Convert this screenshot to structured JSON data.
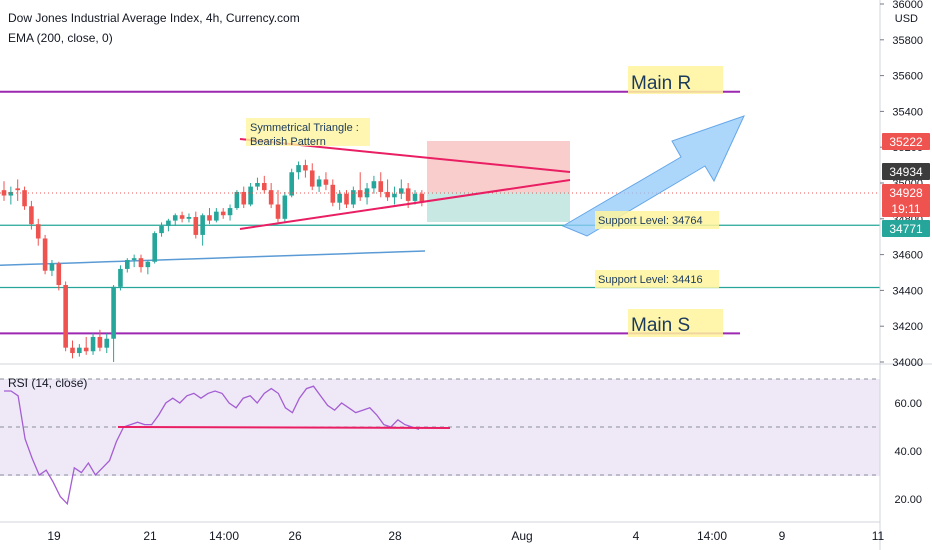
{
  "header": {
    "title": "Dow Jones Industrial Average Index, 4h, Currency.com",
    "indicator": "EMA (200, close, 0)"
  },
  "rsi_panel": {
    "label": "RSI (14, close)"
  },
  "colors": {
    "bull": "#26a69a",
    "bear": "#ef5350",
    "ema": "#5b9bd5",
    "resistance": "#9c27b0",
    "support": "#26a69a",
    "pattern": "#e91e63",
    "rsi_line": "#a45ed3",
    "highlight": "#fff59d",
    "arrow": "#90caf9"
  },
  "chart_data": [
    {
      "type": "candlestick",
      "title": "Dow Jones Industrial Average Index, 4h, Currency.com",
      "ylim": [
        34000,
        36000
      ],
      "y_ticks": [
        34000,
        34200,
        34400,
        34600,
        34800,
        35000,
        35200,
        35400,
        35600,
        35800,
        36000
      ],
      "y_unit": "USD",
      "x_tick_labels": [
        "19",
        "21",
        "14:00",
        "26",
        "28",
        "Aug",
        "4",
        "14:00",
        "9",
        "11"
      ],
      "candles": [
        {
          "o": 34960,
          "h": 35010,
          "l": 34900,
          "c": 34930
        },
        {
          "o": 34930,
          "h": 34980,
          "l": 34880,
          "c": 34950
        },
        {
          "o": 34970,
          "h": 35020,
          "l": 34900,
          "c": 34960
        },
        {
          "o": 34960,
          "h": 34980,
          "l": 34850,
          "c": 34870
        },
        {
          "o": 34870,
          "h": 34900,
          "l": 34740,
          "c": 34770
        },
        {
          "o": 34770,
          "h": 34800,
          "l": 34650,
          "c": 34690
        },
        {
          "o": 34690,
          "h": 34710,
          "l": 34490,
          "c": 34510
        },
        {
          "o": 34510,
          "h": 34570,
          "l": 34480,
          "c": 34550
        },
        {
          "o": 34550,
          "h": 34560,
          "l": 34400,
          "c": 34430
        },
        {
          "o": 34430,
          "h": 34450,
          "l": 34060,
          "c": 34080
        },
        {
          "o": 34080,
          "h": 34120,
          "l": 34020,
          "c": 34050
        },
        {
          "o": 34050,
          "h": 34100,
          "l": 34030,
          "c": 34080
        },
        {
          "o": 34080,
          "h": 34140,
          "l": 34040,
          "c": 34060
        },
        {
          "o": 34060,
          "h": 34160,
          "l": 34040,
          "c": 34140
        },
        {
          "o": 34140,
          "h": 34180,
          "l": 34060,
          "c": 34080
        },
        {
          "o": 34080,
          "h": 34160,
          "l": 34050,
          "c": 34130
        },
        {
          "o": 34130,
          "h": 34430,
          "l": 34000,
          "c": 34420
        },
        {
          "o": 34420,
          "h": 34540,
          "l": 34400,
          "c": 34520
        },
        {
          "o": 34520,
          "h": 34580,
          "l": 34500,
          "c": 34570
        },
        {
          "o": 34570,
          "h": 34600,
          "l": 34530,
          "c": 34580
        },
        {
          "o": 34580,
          "h": 34600,
          "l": 34500,
          "c": 34530
        },
        {
          "o": 34530,
          "h": 34570,
          "l": 34490,
          "c": 34560
        },
        {
          "o": 34560,
          "h": 34730,
          "l": 34550,
          "c": 34720
        },
        {
          "o": 34720,
          "h": 34780,
          "l": 34700,
          "c": 34760
        },
        {
          "o": 34760,
          "h": 34800,
          "l": 34730,
          "c": 34790
        },
        {
          "o": 34790,
          "h": 34830,
          "l": 34760,
          "c": 34820
        },
        {
          "o": 34820,
          "h": 34840,
          "l": 34780,
          "c": 34800
        },
        {
          "o": 34800,
          "h": 34830,
          "l": 34780,
          "c": 34810
        },
        {
          "o": 34810,
          "h": 34840,
          "l": 34690,
          "c": 34710
        },
        {
          "o": 34710,
          "h": 34830,
          "l": 34650,
          "c": 34820
        },
        {
          "o": 34820,
          "h": 34860,
          "l": 34770,
          "c": 34790
        },
        {
          "o": 34790,
          "h": 34860,
          "l": 34780,
          "c": 34840
        },
        {
          "o": 34840,
          "h": 34860,
          "l": 34800,
          "c": 34820
        },
        {
          "o": 34820,
          "h": 34880,
          "l": 34790,
          "c": 34860
        },
        {
          "o": 34860,
          "h": 34960,
          "l": 34850,
          "c": 34950
        },
        {
          "o": 34950,
          "h": 34980,
          "l": 34860,
          "c": 34880
        },
        {
          "o": 34880,
          "h": 35000,
          "l": 34870,
          "c": 34980
        },
        {
          "o": 34980,
          "h": 35030,
          "l": 34960,
          "c": 35000
        },
        {
          "o": 35000,
          "h": 35040,
          "l": 34940,
          "c": 34960
        },
        {
          "o": 34960,
          "h": 35000,
          "l": 34860,
          "c": 34880
        },
        {
          "o": 34880,
          "h": 34960,
          "l": 34780,
          "c": 34800
        },
        {
          "o": 34800,
          "h": 34950,
          "l": 34780,
          "c": 34930
        },
        {
          "o": 34930,
          "h": 35080,
          "l": 34920,
          "c": 35060
        },
        {
          "o": 35060,
          "h": 35120,
          "l": 35020,
          "c": 35100
        },
        {
          "o": 35100,
          "h": 35130,
          "l": 35030,
          "c": 35070
        },
        {
          "o": 35070,
          "h": 35110,
          "l": 34960,
          "c": 34980
        },
        {
          "o": 34980,
          "h": 35040,
          "l": 34950,
          "c": 35020
        },
        {
          "o": 35020,
          "h": 35060,
          "l": 34960,
          "c": 34990
        },
        {
          "o": 34990,
          "h": 35020,
          "l": 34870,
          "c": 34890
        },
        {
          "o": 34890,
          "h": 34960,
          "l": 34850,
          "c": 34940
        },
        {
          "o": 34940,
          "h": 34960,
          "l": 34860,
          "c": 34880
        },
        {
          "o": 34880,
          "h": 34980,
          "l": 34860,
          "c": 34960
        },
        {
          "o": 34960,
          "h": 35060,
          "l": 34900,
          "c": 34920
        },
        {
          "o": 34920,
          "h": 35000,
          "l": 34880,
          "c": 34970
        },
        {
          "o": 34970,
          "h": 35040,
          "l": 34940,
          "c": 35010
        },
        {
          "o": 35010,
          "h": 35060,
          "l": 34920,
          "c": 34950
        },
        {
          "o": 34950,
          "h": 35020,
          "l": 34900,
          "c": 34920
        },
        {
          "o": 34920,
          "h": 34980,
          "l": 34880,
          "c": 34940
        },
        {
          "o": 34940,
          "h": 35020,
          "l": 34910,
          "c": 34970
        },
        {
          "o": 34970,
          "h": 35000,
          "l": 34860,
          "c": 34900
        },
        {
          "o": 34900,
          "h": 34960,
          "l": 34880,
          "c": 34940
        },
        {
          "o": 34940,
          "h": 34960,
          "l": 34870,
          "c": 34890
        }
      ],
      "ema_200": [
        34540,
        34545,
        34550,
        34555,
        34560,
        34565,
        34570,
        34575,
        34580,
        34585,
        34590,
        34595,
        34600,
        34605,
        34610,
        34615,
        34620
      ],
      "horizontal_levels": [
        {
          "name": "Main R",
          "value": 35510,
          "kind": "resistance"
        },
        {
          "name": "Support Level: 34764",
          "value": 34764,
          "kind": "support"
        },
        {
          "name": "Support Level: 34416",
          "value": 34416,
          "kind": "support"
        },
        {
          "name": "Main S",
          "value": 34160,
          "kind": "resistance"
        }
      ],
      "annotations": [
        {
          "text": "Symmetrical Triangle :"
        },
        {
          "text": "Bearish Pattern"
        },
        {
          "text": "Main R"
        },
        {
          "text": "Main S"
        }
      ],
      "price_badges": [
        {
          "text": "35222",
          "value": 35222,
          "color": "#ef5350"
        },
        {
          "text": "34934",
          "value": 34934,
          "color": "#3c3c3c"
        },
        {
          "text": "34928",
          "value": 34928,
          "color": "#ef5350"
        },
        {
          "text": "19:11",
          "value": 34870,
          "color": "#ef5350"
        },
        {
          "text": "34771",
          "value": 34771,
          "color": "#26a69a"
        }
      ]
    },
    {
      "type": "line",
      "title": "RSI (14, close)",
      "ylim": [
        10,
        75
      ],
      "y_ticks": [
        20.0,
        40.0,
        60.0
      ],
      "y_tick_labels": [
        "20.00",
        "40.00",
        "60.00"
      ],
      "bands": [
        30,
        50,
        70
      ],
      "values": [
        65,
        65,
        63,
        45,
        37,
        30,
        32,
        27,
        21,
        18,
        33,
        31,
        35,
        30,
        33,
        36,
        44,
        50,
        51,
        52,
        51,
        51,
        55,
        60,
        62,
        60,
        63,
        64,
        62,
        64,
        65,
        64,
        60,
        58,
        62,
        63,
        60,
        64,
        66,
        64,
        58,
        56,
        62,
        66,
        67,
        63,
        59,
        57,
        60,
        58,
        56,
        57,
        58,
        55,
        51,
        50,
        53,
        51,
        50,
        49
      ],
      "reference_value": 49.5
    }
  ]
}
